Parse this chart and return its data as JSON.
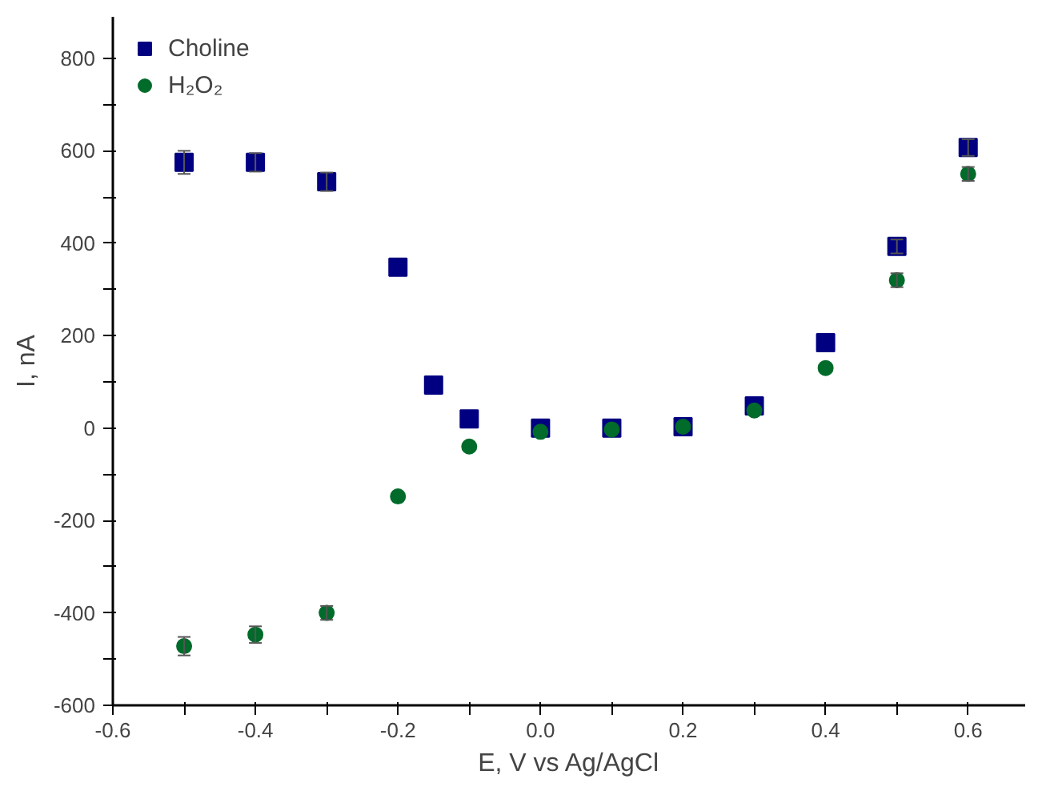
{
  "chart_data": {
    "type": "scatter",
    "xlabel": "E, V vs Ag/AgCl",
    "ylabel": "I, nA",
    "x": [
      -0.5,
      -0.4,
      -0.3,
      -0.2,
      -0.15,
      -0.1,
      0.0,
      0.1,
      0.2,
      0.3,
      0.4,
      0.5,
      0.6
    ],
    "series": [
      {
        "name": "Choline",
        "color": "#000080",
        "marker": "square",
        "values": [
          575,
          575,
          533,
          348,
          93,
          20,
          0,
          0,
          3,
          48,
          185,
          393,
          607
        ],
        "errors": [
          25,
          20,
          20,
          null,
          null,
          null,
          null,
          null,
          null,
          null,
          null,
          15,
          18
        ]
      },
      {
        "name": "H₂O₂",
        "color": "#006b2b",
        "marker": "circle",
        "x": [
          -0.5,
          -0.4,
          -0.3,
          -0.2,
          -0.1,
          0.0,
          0.1,
          0.2,
          0.3,
          0.4,
          0.5,
          0.6
        ],
        "values": [
          -472,
          -447,
          -400,
          -148,
          -40,
          -8,
          -3,
          3,
          38,
          130,
          320,
          550
        ],
        "errors": [
          20,
          18,
          15,
          null,
          null,
          null,
          null,
          null,
          null,
          null,
          15,
          15
        ]
      }
    ],
    "xlim": [
      -0.6,
      0.68
    ],
    "ylim": [
      -600,
      890
    ],
    "xticks": [
      {
        "value": -0.6,
        "label": "-0.6"
      },
      {
        "value": -0.5,
        "label": null
      },
      {
        "value": -0.4,
        "label": "-0.4"
      },
      {
        "value": -0.3,
        "label": null
      },
      {
        "value": -0.2,
        "label": "-0.2"
      },
      {
        "value": -0.1,
        "label": null
      },
      {
        "value": 0.0,
        "label": "0.0"
      },
      {
        "value": 0.1,
        "label": null
      },
      {
        "value": 0.2,
        "label": "0.2"
      },
      {
        "value": 0.3,
        "label": null
      },
      {
        "value": 0.4,
        "label": "0.4"
      },
      {
        "value": 0.5,
        "label": null
      },
      {
        "value": 0.6,
        "label": "0.6"
      }
    ],
    "yticks": [
      -600,
      {
        "value": -500,
        "label": null
      },
      -400,
      {
        "value": -300,
        "label": null
      },
      -200,
      {
        "value": -100,
        "label": null
      },
      0,
      {
        "value": 100,
        "label": null
      },
      200,
      {
        "value": 300,
        "label": null
      },
      400,
      {
        "value": 500,
        "label": null
      },
      600,
      {
        "value": 700,
        "label": null
      },
      800
    ],
    "grid": false,
    "legend": "top left"
  }
}
